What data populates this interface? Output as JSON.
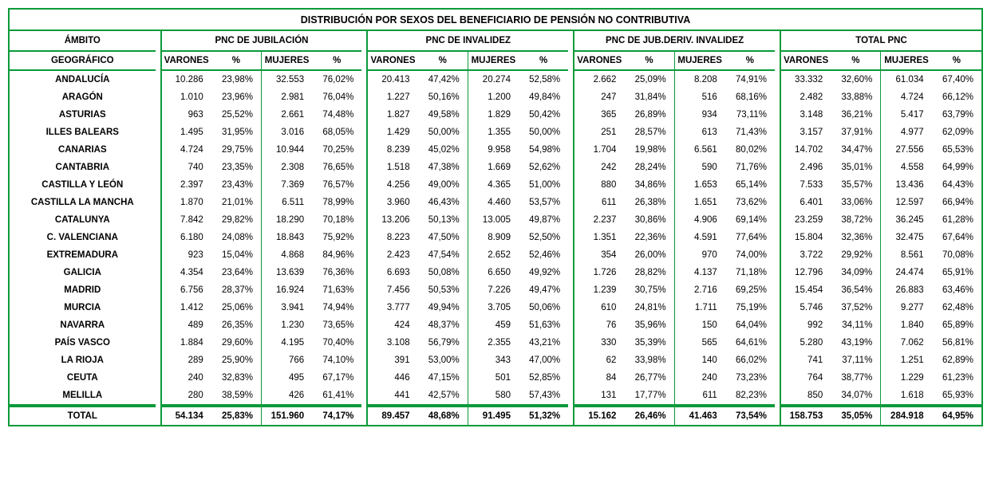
{
  "title": "DISTRIBUCIÓN POR SEXOS DEL BENEFICIARIO DE PENSIÓN NO CONTRIBUTIVA",
  "geo_header1": "ÁMBITO",
  "geo_header2": "GEOGRÁFICO",
  "groups": [
    "PNC DE JUBILACIÓN",
    "PNC DE INVALIDEZ",
    "PNC DE JUB.DERIV. INVALIDEZ",
    "TOTAL PNC"
  ],
  "sub": {
    "varones": "VARONES",
    "pct": "%",
    "mujeres": "MUJERES"
  },
  "rows": [
    {
      "geo": "ANDALUCÍA",
      "c": [
        "10.286",
        "23,98%",
        "32.553",
        "76,02%",
        "20.413",
        "47,42%",
        "20.274",
        "52,58%",
        "2.662",
        "25,09%",
        "8.208",
        "74,91%",
        "33.332",
        "32,60%",
        "61.034",
        "67,40%"
      ]
    },
    {
      "geo": "ARAGÓN",
      "c": [
        "1.010",
        "23,96%",
        "2.981",
        "76,04%",
        "1.227",
        "50,16%",
        "1.200",
        "49,84%",
        "247",
        "31,84%",
        "516",
        "68,16%",
        "2.482",
        "33,88%",
        "4.724",
        "66,12%"
      ]
    },
    {
      "geo": "ASTURIAS",
      "c": [
        "963",
        "25,52%",
        "2.661",
        "74,48%",
        "1.827",
        "49,58%",
        "1.829",
        "50,42%",
        "365",
        "26,89%",
        "934",
        "73,11%",
        "3.148",
        "36,21%",
        "5.417",
        "63,79%"
      ]
    },
    {
      "geo": "ILLES BALEARS",
      "c": [
        "1.495",
        "31,95%",
        "3.016",
        "68,05%",
        "1.429",
        "50,00%",
        "1.355",
        "50,00%",
        "251",
        "28,57%",
        "613",
        "71,43%",
        "3.157",
        "37,91%",
        "4.977",
        "62,09%"
      ]
    },
    {
      "geo": "CANARIAS",
      "c": [
        "4.724",
        "29,75%",
        "10.944",
        "70,25%",
        "8.239",
        "45,02%",
        "9.958",
        "54,98%",
        "1.704",
        "19,98%",
        "6.561",
        "80,02%",
        "14.702",
        "34,47%",
        "27.556",
        "65,53%"
      ]
    },
    {
      "geo": "CANTABRIA",
      "c": [
        "740",
        "23,35%",
        "2.308",
        "76,65%",
        "1.518",
        "47,38%",
        "1.669",
        "52,62%",
        "242",
        "28,24%",
        "590",
        "71,76%",
        "2.496",
        "35,01%",
        "4.558",
        "64,99%"
      ]
    },
    {
      "geo": "CASTILLA Y LEÓN",
      "c": [
        "2.397",
        "23,43%",
        "7.369",
        "76,57%",
        "4.256",
        "49,00%",
        "4.365",
        "51,00%",
        "880",
        "34,86%",
        "1.653",
        "65,14%",
        "7.533",
        "35,57%",
        "13.436",
        "64,43%"
      ]
    },
    {
      "geo": "CASTILLA LA MANCHA",
      "c": [
        "1.870",
        "21,01%",
        "6.511",
        "78,99%",
        "3.960",
        "46,43%",
        "4.460",
        "53,57%",
        "611",
        "26,38%",
        "1.651",
        "73,62%",
        "6.401",
        "33,06%",
        "12.597",
        "66,94%"
      ]
    },
    {
      "geo": "CATALUNYA",
      "c": [
        "7.842",
        "29,82%",
        "18.290",
        "70,18%",
        "13.206",
        "50,13%",
        "13.005",
        "49,87%",
        "2.237",
        "30,86%",
        "4.906",
        "69,14%",
        "23.259",
        "38,72%",
        "36.245",
        "61,28%"
      ]
    },
    {
      "geo": "C. VALENCIANA",
      "c": [
        "6.180",
        "24,08%",
        "18.843",
        "75,92%",
        "8.223",
        "47,50%",
        "8.909",
        "52,50%",
        "1.351",
        "22,36%",
        "4.591",
        "77,64%",
        "15.804",
        "32,36%",
        "32.475",
        "67,64%"
      ]
    },
    {
      "geo": "EXTREMADURA",
      "c": [
        "923",
        "15,04%",
        "4.868",
        "84,96%",
        "2.423",
        "47,54%",
        "2.652",
        "52,46%",
        "354",
        "26,00%",
        "970",
        "74,00%",
        "3.722",
        "29,92%",
        "8.561",
        "70,08%"
      ]
    },
    {
      "geo": "GALICIA",
      "c": [
        "4.354",
        "23,64%",
        "13.639",
        "76,36%",
        "6.693",
        "50,08%",
        "6.650",
        "49,92%",
        "1.726",
        "28,82%",
        "4.137",
        "71,18%",
        "12.796",
        "34,09%",
        "24.474",
        "65,91%"
      ]
    },
    {
      "geo": "MADRID",
      "c": [
        "6.756",
        "28,37%",
        "16.924",
        "71,63%",
        "7.456",
        "50,53%",
        "7.226",
        "49,47%",
        "1.239",
        "30,75%",
        "2.716",
        "69,25%",
        "15.454",
        "36,54%",
        "26.883",
        "63,46%"
      ]
    },
    {
      "geo": "MURCIA",
      "c": [
        "1.412",
        "25,06%",
        "3.941",
        "74,94%",
        "3.777",
        "49,94%",
        "3.705",
        "50,06%",
        "610",
        "24,81%",
        "1.711",
        "75,19%",
        "5.746",
        "37,52%",
        "9.277",
        "62,48%"
      ]
    },
    {
      "geo": "NAVARRA",
      "c": [
        "489",
        "26,35%",
        "1.230",
        "73,65%",
        "424",
        "48,37%",
        "459",
        "51,63%",
        "76",
        "35,96%",
        "150",
        "64,04%",
        "992",
        "34,11%",
        "1.840",
        "65,89%"
      ]
    },
    {
      "geo": "PAÍS VASCO",
      "c": [
        "1.884",
        "29,60%",
        "4.195",
        "70,40%",
        "3.108",
        "56,79%",
        "2.355",
        "43,21%",
        "330",
        "35,39%",
        "565",
        "64,61%",
        "5.280",
        "43,19%",
        "7.062",
        "56,81%"
      ]
    },
    {
      "geo": "LA RIOJA",
      "c": [
        "289",
        "25,90%",
        "766",
        "74,10%",
        "391",
        "53,00%",
        "343",
        "47,00%",
        "62",
        "33,98%",
        "140",
        "66,02%",
        "741",
        "37,11%",
        "1.251",
        "62,89%"
      ]
    },
    {
      "geo": "CEUTA",
      "c": [
        "240",
        "32,83%",
        "495",
        "67,17%",
        "446",
        "47,15%",
        "501",
        "52,85%",
        "84",
        "26,77%",
        "240",
        "73,23%",
        "764",
        "38,77%",
        "1.229",
        "61,23%"
      ]
    },
    {
      "geo": "MELILLA",
      "c": [
        "280",
        "38,59%",
        "426",
        "61,41%",
        "441",
        "42,57%",
        "580",
        "57,43%",
        "131",
        "17,77%",
        "611",
        "82,23%",
        "850",
        "34,07%",
        "1.618",
        "65,93%"
      ]
    }
  ],
  "total_label": "TOTAL",
  "total": [
    "54.134",
    "25,83%",
    "151.960",
    "74,17%",
    "89.457",
    "48,68%",
    "91.495",
    "51,32%",
    "15.162",
    "26,46%",
    "41.463",
    "73,54%",
    "158.753",
    "35,05%",
    "284.918",
    "64,95%"
  ],
  "style": {
    "border_color": "#0a9a3a",
    "font_family": "Arial",
    "font_size_body": 11.5,
    "font_size_title": 12.5,
    "col_widths": {
      "geo": 182,
      "gap": 6,
      "num": 64,
      "pct": 62
    }
  }
}
